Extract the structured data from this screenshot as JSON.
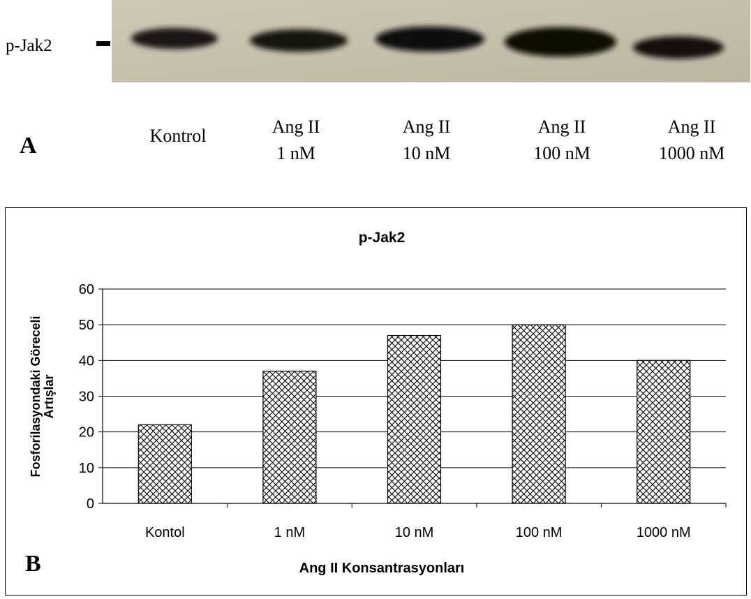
{
  "blot": {
    "row_label": "p-Jak2",
    "panel_label": "A",
    "lanes": [
      {
        "line1": "Kontrol",
        "line2": ""
      },
      {
        "line1": "Ang II",
        "line2": "1 nM"
      },
      {
        "line1": "Ang II",
        "line2": "10 nM"
      },
      {
        "line1": "Ang II",
        "line2": "100 nM"
      },
      {
        "line1": "Ang II",
        "line2": "1000 nM"
      }
    ]
  },
  "panel_b_label": "B",
  "chart_data": {
    "type": "bar",
    "title": "p-Jak2",
    "xlabel": "Ang II Konsantrasyonları",
    "ylabel_line1": "Fosforilasyondaki Göreceli",
    "ylabel_line2": "Artışlar",
    "categories": [
      "Kontol",
      "1 nM",
      "10 nM",
      "100 nM",
      "1000 nM"
    ],
    "values": [
      22,
      37,
      47,
      50,
      40
    ],
    "ylim": [
      0,
      60
    ],
    "yticks": [
      0,
      10,
      20,
      30,
      40,
      50,
      60
    ],
    "grid": true,
    "bar_fill": "crosshatch",
    "colors": {
      "bar_stroke": "#000000",
      "grid": "#000000",
      "hatch": "#000000"
    }
  }
}
